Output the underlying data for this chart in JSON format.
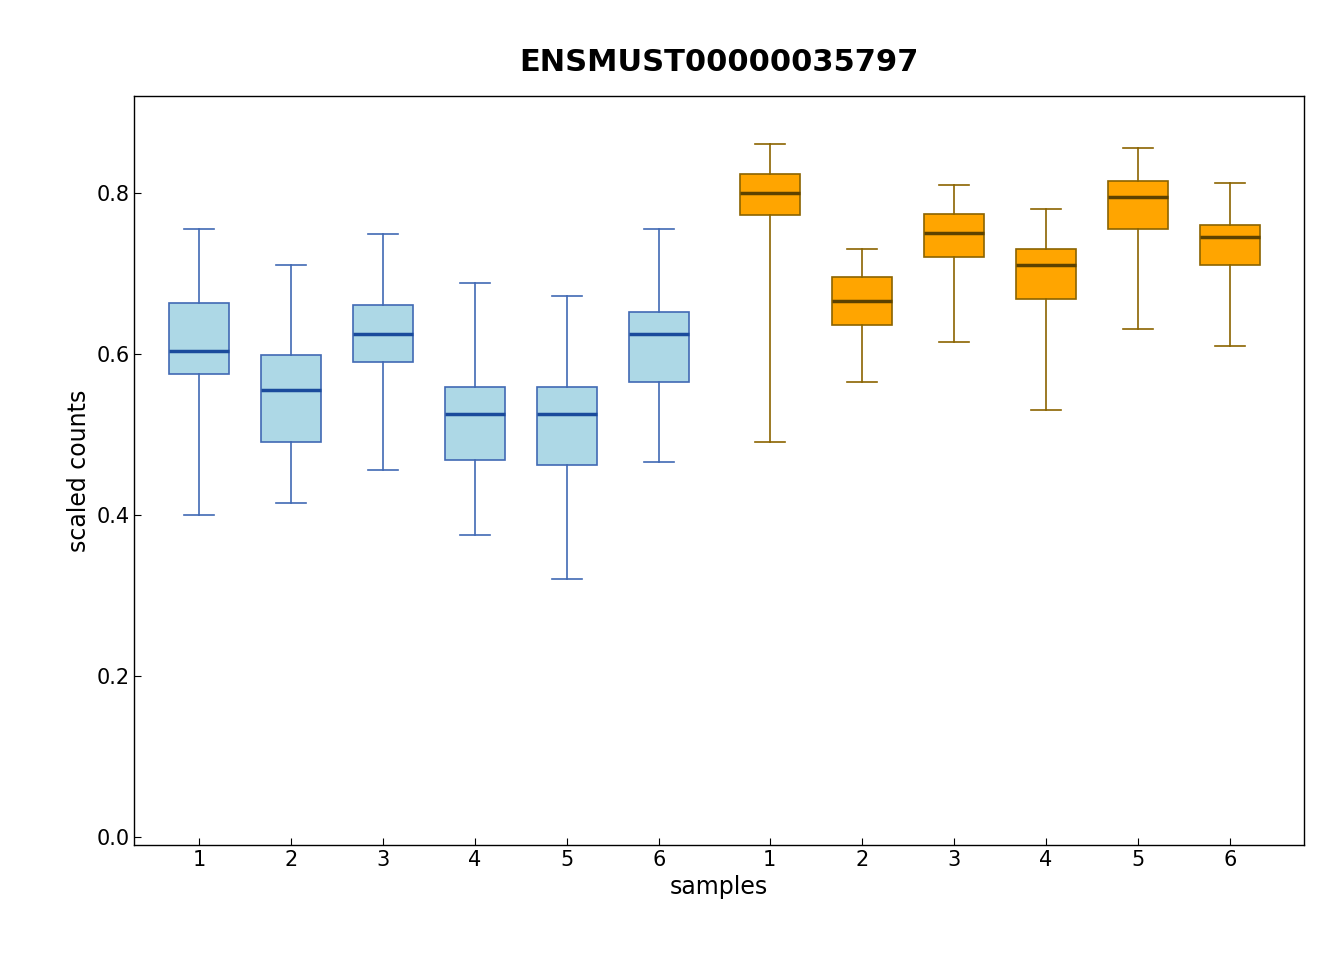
{
  "title": "ENSMUST00000035797",
  "xlabel": "samples",
  "ylabel": "scaled counts",
  "ylim": [
    -0.01,
    0.92
  ],
  "yticks": [
    0.0,
    0.2,
    0.4,
    0.6,
    0.8
  ],
  "ytick_labels": [
    "0.0",
    "0.2",
    "0.4",
    "0.6",
    "0.8"
  ],
  "box_fill_blue": "#ADD8E6",
  "box_edge_blue": "#4169B4",
  "box_median_blue": "#1A4B9C",
  "box_fill_orange": "#FFA500",
  "box_edge_orange": "#8B6400",
  "box_median_orange": "#5C4200",
  "blue_boxes": [
    {
      "whislo": 0.4,
      "q1": 0.575,
      "med": 0.603,
      "q3": 0.663,
      "whishi": 0.755
    },
    {
      "whislo": 0.415,
      "q1": 0.49,
      "med": 0.555,
      "q3": 0.598,
      "whishi": 0.71
    },
    {
      "whislo": 0.455,
      "q1": 0.59,
      "med": 0.625,
      "q3": 0.66,
      "whishi": 0.748
    },
    {
      "whislo": 0.375,
      "q1": 0.468,
      "med": 0.525,
      "q3": 0.558,
      "whishi": 0.688
    },
    {
      "whislo": 0.32,
      "q1": 0.462,
      "med": 0.525,
      "q3": 0.558,
      "whishi": 0.672
    },
    {
      "whislo": 0.465,
      "q1": 0.565,
      "med": 0.625,
      "q3": 0.652,
      "whishi": 0.755
    }
  ],
  "orange_boxes": [
    {
      "whislo": 0.49,
      "q1": 0.772,
      "med": 0.8,
      "q3": 0.823,
      "whishi": 0.86
    },
    {
      "whislo": 0.565,
      "q1": 0.635,
      "med": 0.665,
      "q3": 0.695,
      "whishi": 0.73
    },
    {
      "whislo": 0.615,
      "q1": 0.72,
      "med": 0.75,
      "q3": 0.773,
      "whishi": 0.81
    },
    {
      "whislo": 0.53,
      "q1": 0.668,
      "med": 0.71,
      "q3": 0.73,
      "whishi": 0.78
    },
    {
      "whislo": 0.63,
      "q1": 0.755,
      "med": 0.795,
      "q3": 0.815,
      "whishi": 0.855
    },
    {
      "whislo": 0.61,
      "q1": 0.71,
      "med": 0.745,
      "q3": 0.76,
      "whishi": 0.812
    }
  ],
  "x_positions_blue": [
    1,
    2,
    3,
    4,
    5,
    6
  ],
  "x_positions_orange": [
    7.2,
    8.2,
    9.2,
    10.2,
    11.2,
    12.2
  ],
  "xtick_positions": [
    1,
    2,
    3,
    4,
    5,
    6,
    7.2,
    8.2,
    9.2,
    10.2,
    11.2,
    12.2
  ],
  "xtick_labels": [
    "1",
    "2",
    "3",
    "4",
    "5",
    "6",
    "1",
    "2",
    "3",
    "4",
    "5",
    "6"
  ],
  "xlim": [
    0.3,
    13.0
  ],
  "box_width": 0.65,
  "title_fontsize": 22,
  "label_fontsize": 17,
  "tick_fontsize": 15
}
